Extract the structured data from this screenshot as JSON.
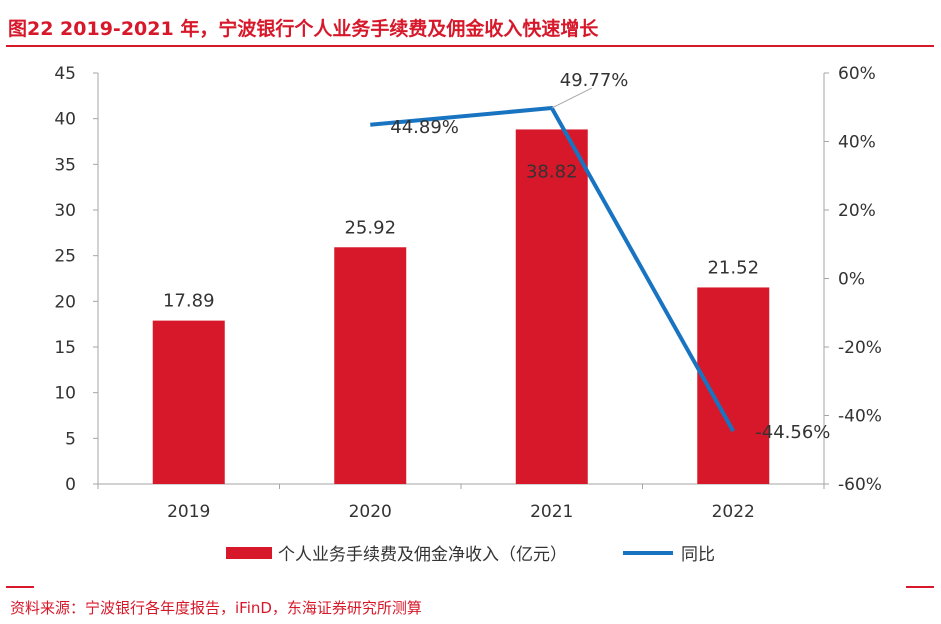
{
  "header": {
    "title": "图22  2019-2021 年，宁波银行个人业务手续费及佣金收入快速增长"
  },
  "footer": {
    "source": "资料来源：宁波银行各年度报告，iFinD，东海证券研究所测算"
  },
  "colors": {
    "accent": "#d7182a",
    "line": "#1874c0",
    "axis": "#a6a6a6",
    "text": "#333333"
  },
  "chart_data": {
    "type": "bar",
    "categories": [
      "2019",
      "2020",
      "2021",
      "2022"
    ],
    "series": [
      {
        "name": "个人业务手续费及佣金净收入（亿元）",
        "axis": "left",
        "type": "bar",
        "values": [
          17.89,
          25.92,
          38.82,
          21.52
        ],
        "labels": [
          "17.89",
          "25.92",
          "38.82",
          "21.52"
        ]
      },
      {
        "name": "同比",
        "axis": "right",
        "type": "line",
        "values": [
          null,
          44.89,
          49.77,
          -44.56
        ],
        "labels": [
          "",
          "44.89%",
          "49.77%",
          "-44.56%"
        ]
      }
    ],
    "left_axis": {
      "ylim": [
        0,
        45
      ],
      "ticks": [
        "0",
        "5",
        "10",
        "15",
        "20",
        "25",
        "30",
        "35",
        "40",
        "45"
      ]
    },
    "right_axis": {
      "ylim": [
        -60,
        60
      ],
      "ticks": [
        "-60%",
        "-40%",
        "-20%",
        "0%",
        "20%",
        "40%",
        "60%"
      ]
    },
    "legend": {
      "position": "bottom",
      "bar_label": "个人业务手续费及佣金净收入（亿元）",
      "line_label": "同比"
    },
    "grid": false
  }
}
